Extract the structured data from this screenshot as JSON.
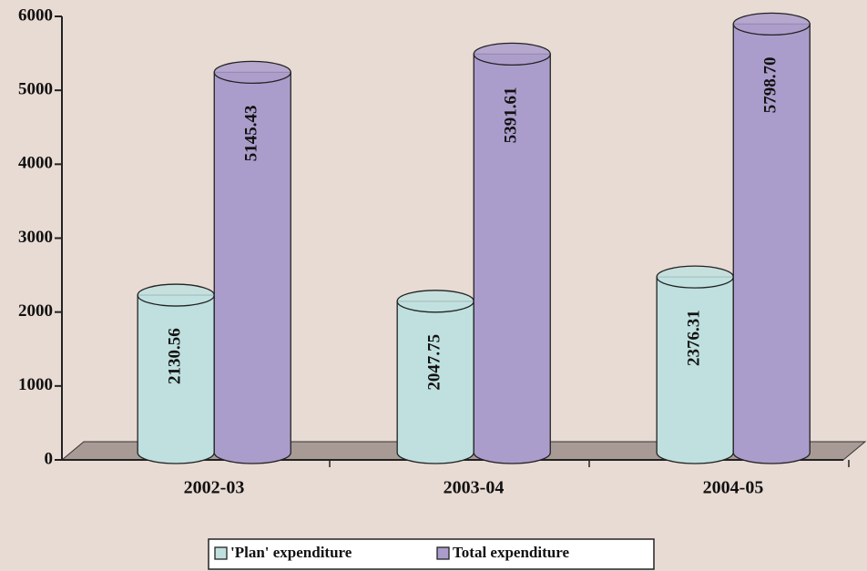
{
  "chart_data": {
    "type": "bar3d",
    "categories": [
      "2002-03",
      "2003-04",
      "2004-05"
    ],
    "series": [
      {
        "name": "'Plan' expenditure",
        "color": "#bfe0df",
        "values": [
          2130.56,
          2047.75,
          2376.31
        ],
        "value_labels": [
          "2130.56",
          "2047.75",
          "2376.31"
        ]
      },
      {
        "name": "Total expenditure",
        "color": "#ab9dcb",
        "values": [
          5145.43,
          5391.61,
          5798.7
        ],
        "value_labels": [
          "5145.43",
          "5391.61",
          "5798.70"
        ]
      }
    ],
    "ylim": [
      0,
      6000
    ],
    "yticks": [
      0,
      1000,
      2000,
      3000,
      4000,
      5000,
      6000
    ],
    "grid": false
  }
}
